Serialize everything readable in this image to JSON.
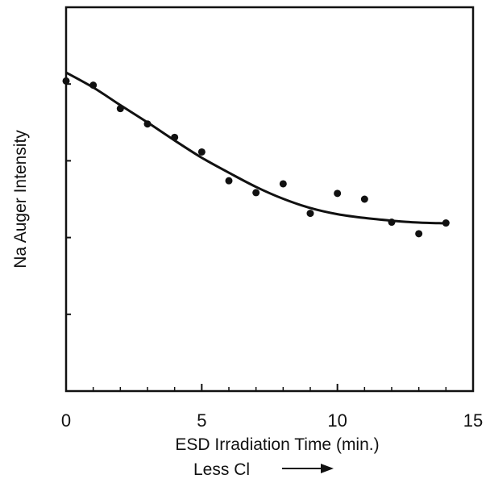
{
  "chart_data": {
    "type": "scatter",
    "xlabel": "ESD Irradiation Time (min.)",
    "ylabel": "Na Auger Intensity",
    "annotation": "Less Cl",
    "xlim": [
      0,
      15
    ],
    "ylim": [
      0,
      1
    ],
    "x_ticks": [
      0,
      5,
      10,
      15
    ],
    "x_minor_ticks": [
      1,
      2,
      3,
      4,
      6,
      7,
      8,
      9,
      11,
      12,
      13,
      14
    ],
    "y_ticks": [
      0.2,
      0.4,
      0.6,
      0.8,
      1.0
    ],
    "y_tick_labels": false,
    "grid": false,
    "series": [
      {
        "type": "scatter",
        "x": [
          0,
          1,
          2,
          3,
          4,
          5,
          6,
          7,
          8,
          9,
          10,
          11,
          12,
          13,
          14
        ],
        "y": [
          0.808,
          0.797,
          0.736,
          0.696,
          0.661,
          0.623,
          0.548,
          0.517,
          0.54,
          0.463,
          0.515,
          0.5,
          0.44,
          0.41,
          0.438
        ]
      },
      {
        "type": "line",
        "x": [
          0,
          1,
          2,
          3,
          4,
          5,
          6,
          7,
          8,
          9,
          10,
          11,
          12,
          13,
          14
        ],
        "y": [
          0.83,
          0.791,
          0.745,
          0.7,
          0.653,
          0.608,
          0.569,
          0.532,
          0.501,
          0.477,
          0.461,
          0.451,
          0.444,
          0.439,
          0.437
        ]
      }
    ]
  }
}
